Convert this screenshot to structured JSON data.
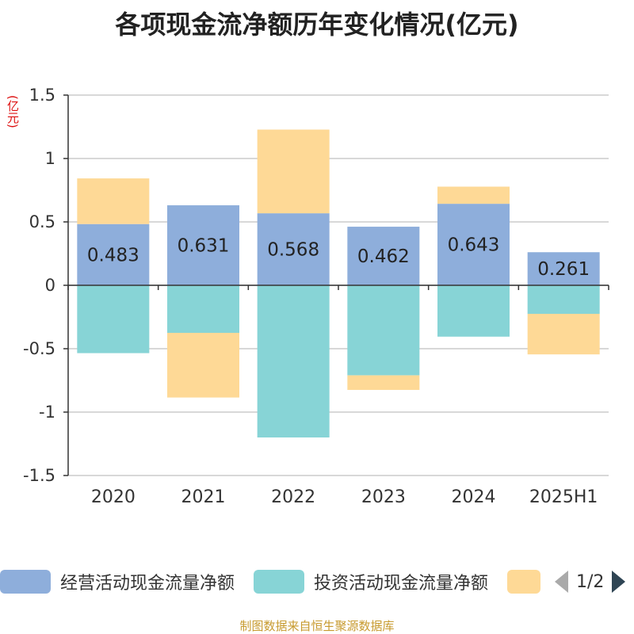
{
  "title": "各项现金流净额历年变化情况(亿元)",
  "unit": "(亿元)",
  "footer": "制图数据来自恒生聚源数据库",
  "legend": {
    "items": [
      {
        "label": "经营活动现金流量净额",
        "color": "#8eaedb"
      },
      {
        "label": "投资活动现金流量净额",
        "color": "#87d4d6"
      },
      {
        "label": "",
        "color": "#fed996"
      }
    ],
    "page": "1/2"
  },
  "chart_data": {
    "type": "bar",
    "stacked": true,
    "categories": [
      "2020",
      "2021",
      "2022",
      "2023",
      "2024",
      "2025H1"
    ],
    "ylim": [
      -1.5,
      1.5
    ],
    "yticks": [
      1.5,
      1,
      0.5,
      0,
      -0.5,
      -1,
      -1.5
    ],
    "ytick_labels": [
      "1.5",
      "1",
      "0.5",
      "0",
      "-0.5",
      "-1",
      "-1.5"
    ],
    "grid": true,
    "legend_position": "bottom",
    "series": [
      {
        "name": "经营活动现金流量净额",
        "color": "#8eaedb",
        "values": [
          0.483,
          0.631,
          0.568,
          0.462,
          0.643,
          0.261
        ],
        "show_labels": true
      },
      {
        "name": "投资活动现金流量净额",
        "color": "#87d4d6",
        "values": [
          -0.535,
          -0.375,
          -1.2,
          -0.71,
          -0.405,
          -0.225
        ],
        "show_labels": false
      },
      {
        "name": "",
        "color": "#fed996",
        "values": [
          0.36,
          -0.51,
          0.66,
          -0.115,
          0.135,
          -0.32
        ],
        "show_labels": false
      }
    ]
  }
}
